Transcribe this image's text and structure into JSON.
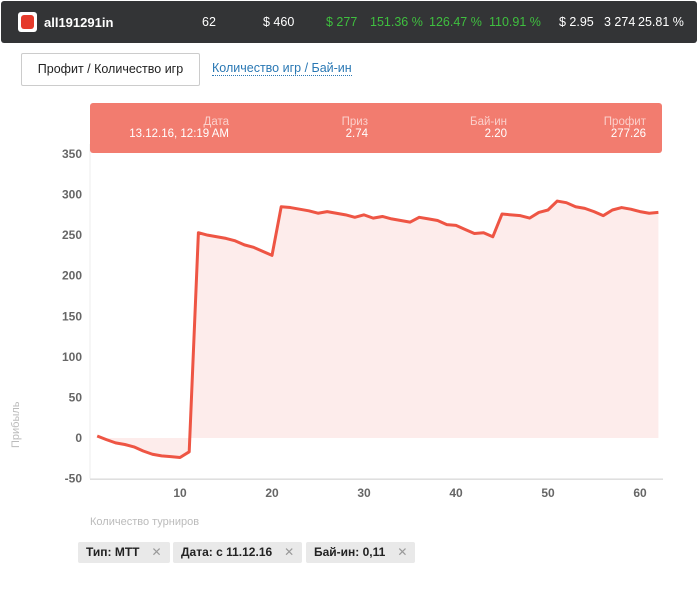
{
  "topbar": {
    "username": "all191291in",
    "games": "62",
    "buyins": "$ 460",
    "profit": "$ 277",
    "roi1": "151.36 %",
    "roi2": "126.47 %",
    "roi3": "110.91 %",
    "avg_buyin": "$ 2.95",
    "players": "3 274",
    "itm": "25.81 %"
  },
  "tabs": {
    "active": "Профит / Количество игр",
    "other": "Количество игр / Бай-ин"
  },
  "tooltip": {
    "date_label": "Дата",
    "date": "13.12.16, 12:19 AM",
    "prize_label": "Приз",
    "prize": "2.74",
    "buyin_label": "Бай-ин",
    "buyin": "2.20",
    "profit_label": "Профит",
    "profit": "277.26"
  },
  "filters": [
    {
      "label": "Тип: MTT"
    },
    {
      "label": "Дата: с 11.12.16"
    },
    {
      "label": "Бай-ин: 0,11"
    }
  ],
  "colors": {
    "line": "#ee5544",
    "fill": "#fdeceb",
    "tooltip": "#f27c6f"
  },
  "chart_data": {
    "type": "area",
    "xlabel": "Количество турниров",
    "ylabel": "Прибыль",
    "ylim": [
      -50,
      350
    ],
    "xlim": [
      0,
      63
    ],
    "yticks": [
      350,
      300,
      250,
      200,
      150,
      100,
      50,
      0,
      -50
    ],
    "xticks": [
      10,
      20,
      30,
      40,
      50,
      60
    ],
    "x": [
      1,
      2,
      3,
      4,
      5,
      6,
      7,
      8,
      9,
      10,
      11,
      12,
      13,
      14,
      15,
      16,
      17,
      18,
      19,
      20,
      21,
      22,
      23,
      24,
      25,
      26,
      27,
      28,
      29,
      30,
      31,
      32,
      33,
      34,
      35,
      36,
      37,
      38,
      39,
      40,
      41,
      42,
      43,
      44,
      45,
      46,
      47,
      48,
      49,
      50,
      51,
      52,
      53,
      54,
      55,
      56,
      57,
      58,
      59,
      60,
      61,
      62
    ],
    "values": [
      2.5,
      -2,
      -6,
      -8,
      -11,
      -16,
      -20,
      -22,
      -23,
      -24,
      -17,
      253,
      250,
      248,
      246,
      243,
      238,
      235,
      230,
      225,
      285,
      284,
      282,
      280,
      277,
      279,
      277,
      275,
      272,
      275,
      271,
      273,
      270,
      268,
      266,
      272,
      270,
      268,
      263,
      262,
      257,
      252,
      253,
      248,
      276,
      275,
      274,
      271,
      278,
      281,
      292,
      290,
      285,
      283,
      279,
      274,
      281,
      284,
      282,
      279,
      277,
      278
    ]
  }
}
